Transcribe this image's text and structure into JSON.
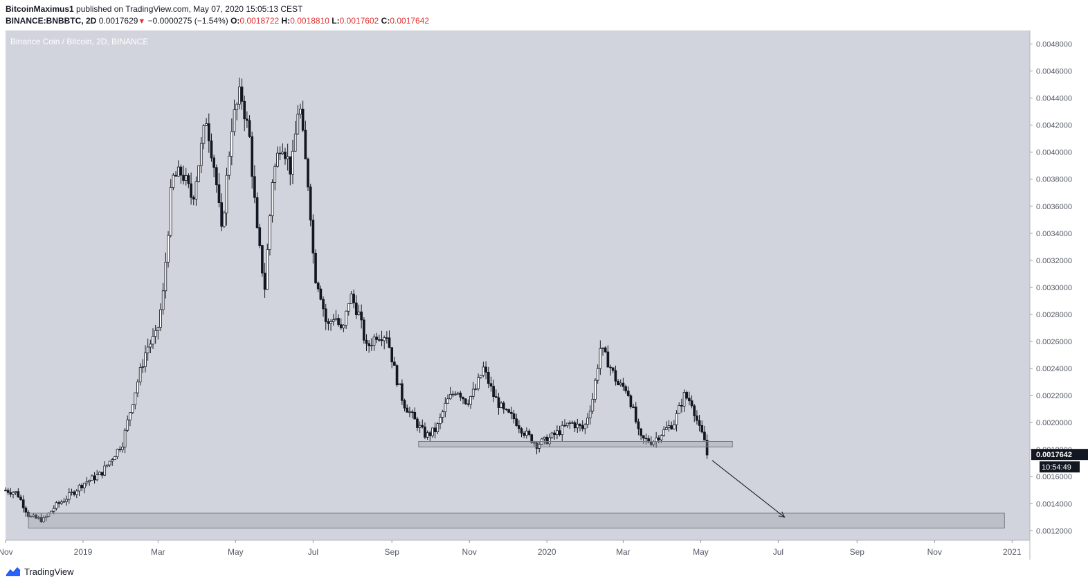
{
  "header": {
    "author": "BitcoinMaximus1",
    "published_text": "published on TradingView.com, May 07, 2020 15:05:13 CEST",
    "symbol": "BINANCE:BNBBTC, 2D",
    "last": "0.0017629",
    "change": "−0.0000275 (−1.54%)",
    "o_label": "O:",
    "o_value": "0.0018722",
    "h_label": "H:",
    "h_value": "0.0018810",
    "l_label": "L:",
    "l_value": "0.0017602",
    "c_label": "C:",
    "c_value": "0.0017642"
  },
  "footer": {
    "brand": "TradingView",
    "logo_icon": "tradingview-logo-icon"
  },
  "colors": {
    "background": "#d1d4dc",
    "candle": "#131722",
    "zone_fill": "#9598a1",
    "price_tag": "#131722",
    "accent_red": "#e0312f"
  },
  "chart_data": {
    "type": "candlestick",
    "title": "Binance Coin / Bitcoin, 2D, BINANCE",
    "timeframe": "2D",
    "x_range": [
      "2018-11-01",
      "2021-01-15"
    ],
    "ylim": [
      0.00113,
      0.0049
    ],
    "y_ticks": [
      "0.0012000",
      "0.0014000",
      "0.0016000",
      "0.0018000",
      "0.0020000",
      "0.0022000",
      "0.0024000",
      "0.0026000",
      "0.0028000",
      "0.0030000",
      "0.0032000",
      "0.0034000",
      "0.0036000",
      "0.0038000",
      "0.0040000",
      "0.0042000",
      "0.0044000",
      "0.0046000",
      "0.0048000"
    ],
    "x_ticks": [
      {
        "label": "Nov",
        "date": "2018-11-01"
      },
      {
        "label": "2019",
        "date": "2019-01-01"
      },
      {
        "label": "Mar",
        "date": "2019-03-01"
      },
      {
        "label": "May",
        "date": "2019-05-01"
      },
      {
        "label": "Jul",
        "date": "2019-07-01"
      },
      {
        "label": "Sep",
        "date": "2019-09-01"
      },
      {
        "label": "Nov",
        "date": "2019-11-01"
      },
      {
        "label": "2020",
        "date": "2020-01-01"
      },
      {
        "label": "Mar",
        "date": "2020-03-01"
      },
      {
        "label": "May",
        "date": "2020-05-01"
      },
      {
        "label": "Jul",
        "date": "2020-07-01"
      },
      {
        "label": "Sep",
        "date": "2020-09-01"
      },
      {
        "label": "Nov",
        "date": "2020-11-01"
      },
      {
        "label": "2021",
        "date": "2021-01-01"
      }
    ],
    "price_path": [
      [
        "2018-11-01",
        0.0015
      ],
      [
        "2018-11-10",
        0.00148
      ],
      [
        "2018-11-20",
        0.0013
      ],
      [
        "2018-12-01",
        0.00128
      ],
      [
        "2018-12-10",
        0.00138
      ],
      [
        "2018-12-20",
        0.00145
      ],
      [
        "2019-01-01",
        0.00155
      ],
      [
        "2019-01-15",
        0.00162
      ],
      [
        "2019-02-01",
        0.00185
      ],
      [
        "2019-02-10",
        0.0022
      ],
      [
        "2019-02-20",
        0.00255
      ],
      [
        "2019-02-28",
        0.00265
      ],
      [
        "2019-03-05",
        0.00295
      ],
      [
        "2019-03-12",
        0.0038
      ],
      [
        "2019-03-20",
        0.00385
      ],
      [
        "2019-03-28",
        0.00365
      ],
      [
        "2019-04-08",
        0.00425
      ],
      [
        "2019-04-15",
        0.00385
      ],
      [
        "2019-04-20",
        0.0034
      ],
      [
        "2019-04-28",
        0.0042
      ],
      [
        "2019-05-05",
        0.00445
      ],
      [
        "2019-05-12",
        0.0041
      ],
      [
        "2019-05-18",
        0.0034
      ],
      [
        "2019-05-24",
        0.003
      ],
      [
        "2019-05-30",
        0.0038
      ],
      [
        "2019-06-06",
        0.0041
      ],
      [
        "2019-06-14",
        0.00385
      ],
      [
        "2019-06-20",
        0.0044
      ],
      [
        "2019-06-24",
        0.004
      ],
      [
        "2019-06-28",
        0.0037
      ],
      [
        "2019-07-02",
        0.0031
      ],
      [
        "2019-07-06",
        0.003
      ],
      [
        "2019-07-12",
        0.0027
      ],
      [
        "2019-07-18",
        0.0028
      ],
      [
        "2019-07-24",
        0.00265
      ],
      [
        "2019-07-30",
        0.00295
      ],
      [
        "2019-08-06",
        0.0028
      ],
      [
        "2019-08-12",
        0.00255
      ],
      [
        "2019-08-20",
        0.00265
      ],
      [
        "2019-08-28",
        0.00265
      ],
      [
        "2019-09-04",
        0.00235
      ],
      [
        "2019-09-10",
        0.00215
      ],
      [
        "2019-09-20",
        0.002
      ],
      [
        "2019-09-28",
        0.0019
      ],
      [
        "2019-10-06",
        0.00195
      ],
      [
        "2019-10-14",
        0.00215
      ],
      [
        "2019-10-22",
        0.00225
      ],
      [
        "2019-10-30",
        0.00215
      ],
      [
        "2019-11-06",
        0.00225
      ],
      [
        "2019-11-12",
        0.0024
      ],
      [
        "2019-11-20",
        0.0022
      ],
      [
        "2019-11-28",
        0.00208
      ],
      [
        "2019-12-06",
        0.00203
      ],
      [
        "2019-12-14",
        0.00193
      ],
      [
        "2019-12-24",
        0.00184
      ],
      [
        "2020-01-01",
        0.00187
      ],
      [
        "2020-01-10",
        0.00193
      ],
      [
        "2020-01-20",
        0.002
      ],
      [
        "2020-01-30",
        0.00195
      ],
      [
        "2020-02-06",
        0.00218
      ],
      [
        "2020-02-12",
        0.00255
      ],
      [
        "2020-02-18",
        0.00245
      ],
      [
        "2020-02-26",
        0.00228
      ],
      [
        "2020-03-04",
        0.00225
      ],
      [
        "2020-03-10",
        0.00205
      ],
      [
        "2020-03-14",
        0.00188
      ],
      [
        "2020-03-24",
        0.00186
      ],
      [
        "2020-04-01",
        0.00193
      ],
      [
        "2020-04-10",
        0.002
      ],
      [
        "2020-04-18",
        0.0022
      ],
      [
        "2020-04-24",
        0.00215
      ],
      [
        "2020-04-30",
        0.00195
      ],
      [
        "2020-05-04",
        0.00187
      ],
      [
        "2020-05-07",
        0.00176
      ]
    ],
    "last_price_label": "0.0017642",
    "countdown_label": "10:54:49",
    "support_zones": [
      {
        "date_start": "2019-09-22",
        "date_end": "2020-05-26",
        "y_low": 0.00182,
        "y_high": 0.00186
      },
      {
        "date_start": "2018-11-19",
        "date_end": "2020-12-26",
        "y_low": 0.00122,
        "y_high": 0.00133
      }
    ],
    "projection_arrow": {
      "from": [
        "2020-05-10",
        0.00172
      ],
      "to": [
        "2020-07-06",
        0.0013
      ]
    }
  }
}
